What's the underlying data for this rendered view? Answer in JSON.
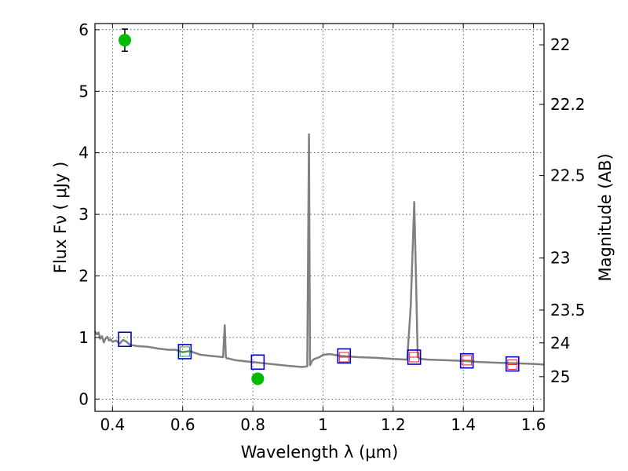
{
  "chart_data": {
    "type": "scatter",
    "xlabel": "Wavelength  λ (μm)",
    "ylabel": "Flux  Fν  ( μJy )",
    "y2label": "Magnitude (AB)",
    "xlim": [
      0.35,
      1.63
    ],
    "ylim": [
      -0.2,
      6.1
    ],
    "x_ticks": [
      0.4,
      0.6,
      0.8,
      1.0,
      1.2,
      1.4,
      1.6
    ],
    "x_tick_labels": [
      "0.4",
      "0.6",
      "0.8",
      "1",
      "1.2",
      "1.4",
      "1.6"
    ],
    "y_ticks": [
      0,
      1,
      2,
      3,
      4,
      5,
      6
    ],
    "y_tick_labels": [
      "0",
      "1",
      "2",
      "3",
      "4",
      "5",
      "6"
    ],
    "y2_ticks": [
      22,
      22.2,
      22.5,
      23,
      23.5,
      24,
      25
    ],
    "y2_tick_labels": [
      "22",
      "22.2",
      "22.5",
      "23",
      "23.5",
      "24",
      "25"
    ],
    "grid": true,
    "colors": {
      "model": "#808080",
      "observed": "#00bb00",
      "model_photometry": "#0000cc",
      "observed_box": "#dd2222",
      "observed_box_green": "#22aa22"
    },
    "series": [
      {
        "kind": "model_spectrum",
        "x": [
          0.35,
          0.355,
          0.36,
          0.365,
          0.37,
          0.375,
          0.38,
          0.385,
          0.39,
          0.395,
          0.4,
          0.41,
          0.42,
          0.43,
          0.44,
          0.45,
          0.47,
          0.5,
          0.53,
          0.56,
          0.58,
          0.6,
          0.62,
          0.65,
          0.68,
          0.7,
          0.715,
          0.72,
          0.723,
          0.726,
          0.73,
          0.75,
          0.8,
          0.85,
          0.9,
          0.94,
          0.955,
          0.96,
          0.963,
          0.966,
          0.969,
          0.975,
          0.99,
          1.0,
          1.02,
          1.05,
          1.1,
          1.15,
          1.2,
          1.24,
          1.25,
          1.26,
          1.265,
          1.27,
          1.28,
          1.3,
          1.35,
          1.4,
          1.45,
          1.5,
          1.55,
          1.6,
          1.63
        ],
        "y": [
          1.1,
          1.05,
          1.08,
          0.98,
          1.02,
          0.92,
          0.98,
          1.01,
          0.95,
          0.97,
          0.93,
          0.95,
          0.9,
          0.96,
          0.93,
          0.88,
          0.86,
          0.85,
          0.82,
          0.8,
          0.8,
          0.76,
          0.78,
          0.72,
          0.7,
          0.69,
          0.68,
          1.2,
          0.68,
          0.66,
          0.66,
          0.63,
          0.6,
          0.57,
          0.54,
          0.52,
          0.53,
          4.3,
          0.55,
          0.58,
          0.62,
          0.65,
          0.68,
          0.72,
          0.73,
          0.7,
          0.68,
          0.67,
          0.65,
          0.64,
          1.5,
          3.2,
          2.0,
          0.68,
          0.65,
          0.64,
          0.63,
          0.62,
          0.6,
          0.59,
          0.58,
          0.57,
          0.56
        ]
      },
      {
        "kind": "model_photometry",
        "x": [
          0.435,
          0.606,
          0.814,
          1.06,
          1.26,
          1.41,
          1.54
        ],
        "y": [
          0.97,
          0.77,
          0.6,
          0.7,
          0.68,
          0.62,
          0.57
        ]
      },
      {
        "kind": "observed_upper_limit_boxes",
        "x": [
          0.606,
          1.06,
          1.26,
          1.41,
          1.54
        ],
        "y": [
          0.77,
          0.68,
          0.68,
          0.63,
          0.56
        ]
      },
      {
        "kind": "observed_detections",
        "x": [
          0.435,
          0.814
        ],
        "y": [
          5.83,
          0.33
        ],
        "yerr": [
          0.18,
          0.05
        ]
      }
    ]
  }
}
